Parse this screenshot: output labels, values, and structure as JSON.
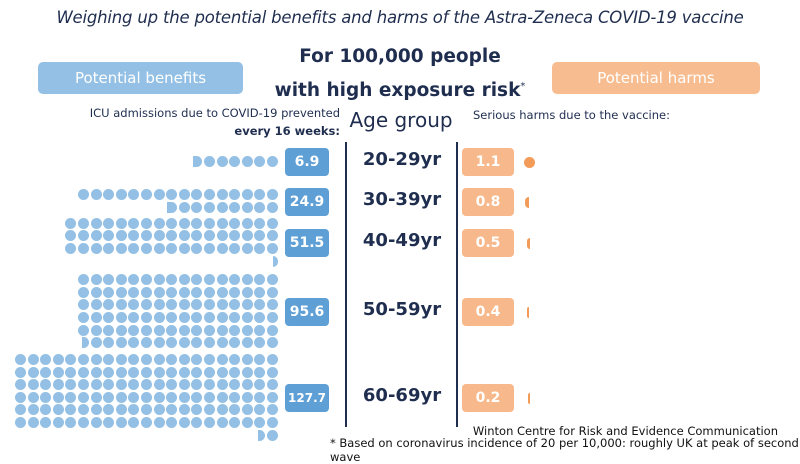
{
  "title": "Weighing up the potential benefits and harms of the Astra-Zeneca COVID-19 vaccine",
  "subtitle_line1": "For 100,000 people",
  "subtitle_line2": "with high exposure risk",
  "subtitle_mark": "*",
  "benefits_header": "Potential benefits",
  "harms_header": "Potential harms",
  "benefits_sub_line1": "ICU admissions due to COVID-19 prevented",
  "benefits_sub_line2": "every 16 weeks:",
  "age_group_label": "Age group",
  "harms_sub": "Serious harms due to the vaccine:",
  "credit": "Winton Centre for Risk and Evidence Communication",
  "footnote": "* Based on coronavirus incidence of 20 per 10,000: roughly UK at peak of second wave",
  "colors": {
    "benefit": "#93c0e4",
    "benefit_box": "#5e9fd6",
    "harm": "#f7b98b",
    "harm_dot": "#f39b58",
    "text": "#1f2d4f"
  },
  "chart_data": {
    "type": "pictogram",
    "title": "Weighing up the potential benefits and harms of the Astra-Zeneca COVID-19 vaccine",
    "categories": [
      "20-29yr",
      "30-39yr",
      "40-49yr",
      "50-59yr",
      "60-69yr"
    ],
    "series": [
      {
        "name": "ICU admissions due to COVID-19 prevented every 16 weeks (per 100,000)",
        "values": [
          6.9,
          24.9,
          51.5,
          95.6,
          127.7
        ]
      },
      {
        "name": "Serious harms due to the vaccine (per 100,000)",
        "values": [
          1.1,
          0.8,
          0.5,
          0.4,
          0.2
        ]
      }
    ],
    "labels": {
      "benefits": [
        "6.9",
        "24.9",
        "51.5",
        "95.6",
        "127.7"
      ],
      "harms": [
        "1.1",
        "0.8",
        "0.5",
        "0.4",
        "0.2"
      ]
    }
  }
}
